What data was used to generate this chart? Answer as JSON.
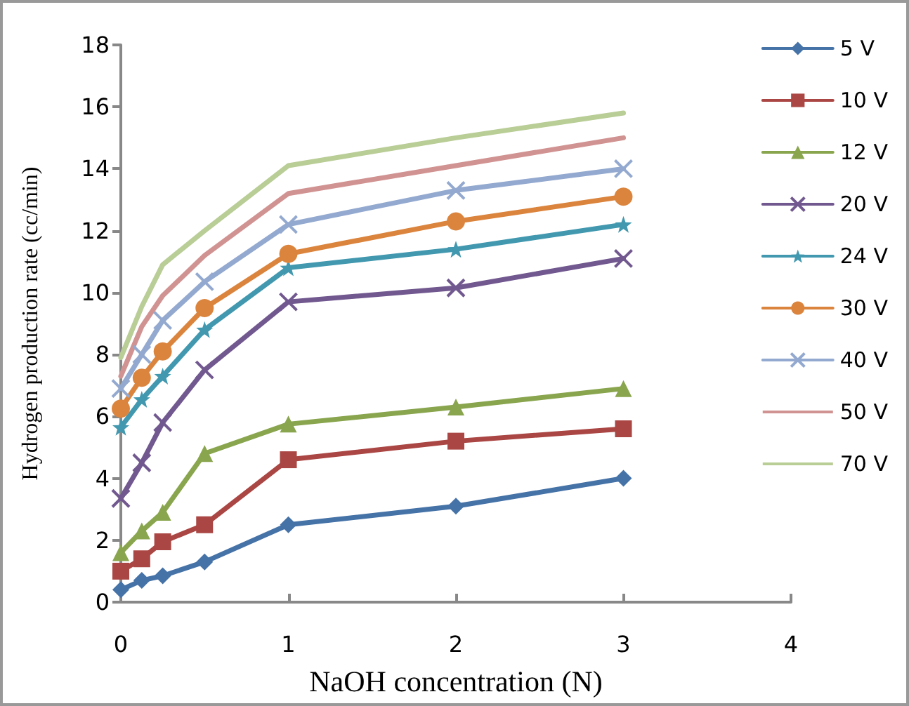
{
  "chart_data": {
    "type": "line",
    "xlabel": "NaOH concentration (N)",
    "ylabel": "Hydrogen production rate (cc/min)",
    "x": [
      0,
      0.125,
      0.25,
      0.5,
      1,
      2,
      3
    ],
    "xlim": [
      0,
      4
    ],
    "xticks": [
      0,
      1,
      2,
      3,
      4
    ],
    "ylim": [
      0,
      18
    ],
    "yticks": [
      0,
      2,
      4,
      6,
      8,
      10,
      12,
      14,
      16,
      18
    ],
    "grid": false,
    "legend": "right",
    "line_style": "solid",
    "series": [
      {
        "name": "5 V",
        "color": "#4572a7",
        "marker": "diamond",
        "values": [
          0.4,
          0.7,
          0.85,
          1.3,
          2.5,
          3.1,
          4.0
        ]
      },
      {
        "name": "10 V",
        "color": "#aa4643",
        "marker": "square",
        "values": [
          1.0,
          1.4,
          1.95,
          2.5,
          4.6,
          5.2,
          5.6
        ]
      },
      {
        "name": "12 V",
        "color": "#89a54e",
        "marker": "triangle",
        "values": [
          1.6,
          2.3,
          2.9,
          4.8,
          5.75,
          6.3,
          6.9
        ]
      },
      {
        "name": "20 V",
        "color": "#71588f",
        "marker": "cross",
        "values": [
          3.35,
          4.5,
          5.8,
          7.5,
          9.7,
          10.15,
          11.1
        ]
      },
      {
        "name": "24 V",
        "color": "#4198af",
        "marker": "star",
        "values": [
          5.65,
          6.55,
          7.3,
          8.8,
          10.8,
          11.4,
          12.2
        ]
      },
      {
        "name": "30 V",
        "color": "#db843d",
        "marker": "circle",
        "values": [
          6.25,
          7.25,
          8.1,
          9.5,
          11.25,
          12.3,
          13.1
        ]
      },
      {
        "name": "40 V",
        "color": "#93a9cf",
        "marker": "cross",
        "values": [
          6.9,
          8.0,
          9.1,
          10.35,
          12.2,
          13.3,
          14.0
        ]
      },
      {
        "name": "50 V",
        "color": "#d19392",
        "marker": "none",
        "values": [
          7.3,
          8.9,
          9.9,
          11.2,
          13.2,
          14.1,
          15.0
        ]
      },
      {
        "name": "70 V",
        "color": "#b9cd96",
        "marker": "none",
        "values": [
          7.9,
          9.55,
          10.9,
          12.0,
          14.1,
          15.0,
          15.8
        ]
      }
    ]
  }
}
